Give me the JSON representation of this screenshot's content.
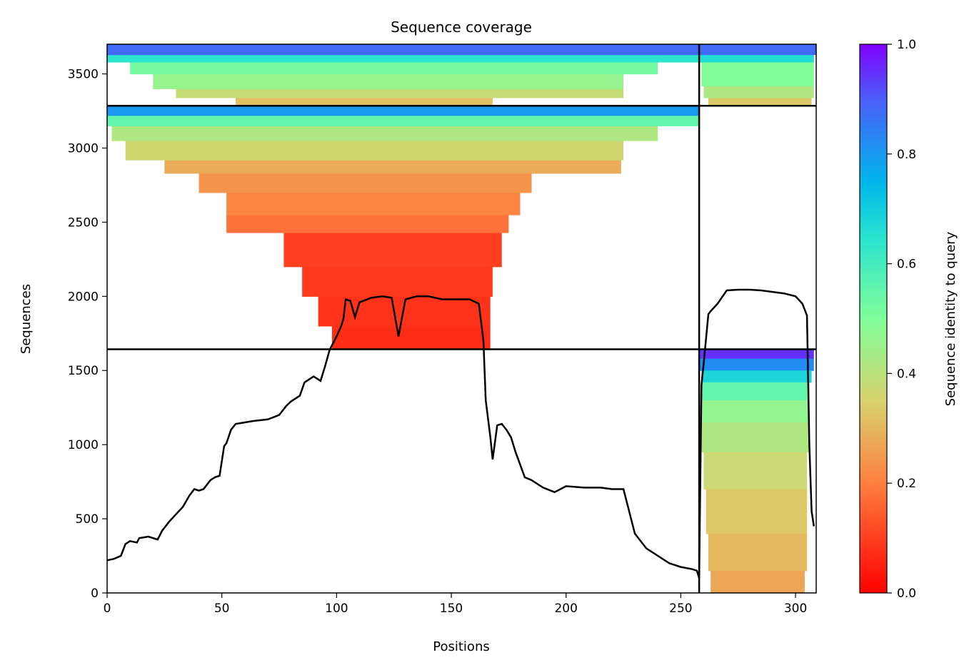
{
  "chart_data": {
    "type": "heatmap",
    "title": "Sequence coverage",
    "xlabel": "Positions",
    "ylabel": "Sequences",
    "xlim": [
      0,
      309
    ],
    "ylim": [
      0,
      3700
    ],
    "xticks": [
      0,
      50,
      100,
      150,
      200,
      250,
      300
    ],
    "yticks": [
      0,
      500,
      1000,
      1500,
      2000,
      2500,
      3000,
      3500
    ],
    "grid": false,
    "colorbar": {
      "label": "Sequence identity to query",
      "range": [
        0,
        1
      ],
      "ticks": [
        "0.0",
        "0.2",
        "0.4",
        "0.6",
        "0.8",
        "1.0"
      ],
      "colormap": "rainbow"
    },
    "separators": {
      "horizontal": [
        1643,
        3285
      ],
      "vertical": [
        258
      ]
    },
    "blocks": [
      {
        "name": "bottom-right",
        "y_range": [
          0,
          1643
        ],
        "rows": [
          {
            "y0": 1580,
            "y1": 1643,
            "x0": 258,
            "x1": 308,
            "identity": 0.95
          },
          {
            "y0": 1500,
            "y1": 1580,
            "x0": 258,
            "x1": 308,
            "identity": 0.82
          },
          {
            "y0": 1420,
            "y1": 1500,
            "x0": 259,
            "x1": 307,
            "identity": 0.68
          },
          {
            "y0": 1300,
            "y1": 1420,
            "x0": 259,
            "x1": 306,
            "identity": 0.55
          },
          {
            "y0": 1150,
            "y1": 1300,
            "x0": 259,
            "x1": 306,
            "identity": 0.47
          },
          {
            "y0": 950,
            "y1": 1150,
            "x0": 259,
            "x1": 306,
            "identity": 0.42
          },
          {
            "y0": 700,
            "y1": 950,
            "x0": 260,
            "x1": 305,
            "identity": 0.37
          },
          {
            "y0": 400,
            "y1": 700,
            "x0": 261,
            "x1": 305,
            "identity": 0.33
          },
          {
            "y0": 150,
            "y1": 400,
            "x0": 262,
            "x1": 305,
            "identity": 0.3
          },
          {
            "y0": 0,
            "y1": 150,
            "x0": 263,
            "x1": 304,
            "identity": 0.27
          }
        ]
      },
      {
        "name": "middle-left",
        "y_range": [
          1643,
          3285
        ],
        "rows": [
          {
            "y0": 1643,
            "y1": 1800,
            "x0": 98,
            "x1": 167,
            "identity": 0.07
          },
          {
            "y0": 1800,
            "y1": 2000,
            "x0": 92,
            "x1": 167,
            "identity": 0.08
          },
          {
            "y0": 2000,
            "y1": 2200,
            "x0": 85,
            "x1": 168,
            "identity": 0.09
          },
          {
            "y0": 2200,
            "y1": 2430,
            "x0": 77,
            "x1": 172,
            "identity": 0.1
          },
          {
            "y0": 2430,
            "y1": 2550,
            "x0": 52,
            "x1": 175,
            "identity": 0.18
          },
          {
            "y0": 2550,
            "y1": 2700,
            "x0": 52,
            "x1": 180,
            "identity": 0.21
          },
          {
            "y0": 2700,
            "y1": 2830,
            "x0": 40,
            "x1": 185,
            "identity": 0.24
          },
          {
            "y0": 2830,
            "y1": 2920,
            "x0": 25,
            "x1": 224,
            "identity": 0.28
          },
          {
            "y0": 2920,
            "y1": 3050,
            "x0": 8,
            "x1": 225,
            "identity": 0.36
          },
          {
            "y0": 3050,
            "y1": 3150,
            "x0": 2,
            "x1": 240,
            "identity": 0.42
          },
          {
            "y0": 3150,
            "y1": 3220,
            "x0": 0,
            "x1": 258,
            "identity": 0.55
          },
          {
            "y0": 3220,
            "y1": 3285,
            "x0": 0,
            "x1": 258,
            "identity": 0.8
          }
        ]
      },
      {
        "name": "top-left",
        "y_range": [
          3285,
          3700
        ],
        "rows": [
          {
            "y0": 3285,
            "y1": 3340,
            "x0": 56,
            "x1": 168,
            "identity": 0.32
          },
          {
            "y0": 3340,
            "y1": 3400,
            "x0": 30,
            "x1": 225,
            "identity": 0.38
          },
          {
            "y0": 3400,
            "y1": 3500,
            "x0": 20,
            "x1": 225,
            "identity": 0.46
          },
          {
            "y0": 3500,
            "y1": 3580,
            "x0": 10,
            "x1": 240,
            "identity": 0.52
          },
          {
            "y0": 3580,
            "y1": 3630,
            "x0": 0,
            "x1": 258,
            "identity": 0.64
          },
          {
            "y0": 3630,
            "y1": 3700,
            "x0": 0,
            "x1": 258,
            "identity": 0.88
          }
        ]
      },
      {
        "name": "top-right",
        "y_range": [
          3285,
          3700
        ],
        "rows": [
          {
            "y0": 3285,
            "y1": 3340,
            "x0": 262,
            "x1": 307,
            "identity": 0.33
          },
          {
            "y0": 3340,
            "y1": 3420,
            "x0": 260,
            "x1": 308,
            "identity": 0.42
          },
          {
            "y0": 3420,
            "y1": 3580,
            "x0": 259,
            "x1": 308,
            "identity": 0.5
          },
          {
            "y0": 3580,
            "y1": 3630,
            "x0": 258,
            "x1": 308,
            "identity": 0.66
          },
          {
            "y0": 3630,
            "y1": 3700,
            "x0": 258,
            "x1": 309,
            "identity": 0.88
          }
        ]
      }
    ],
    "coverage_line": {
      "x": [
        0,
        3,
        6,
        8,
        10,
        13,
        14,
        16,
        18,
        22,
        24,
        27,
        30,
        33,
        36,
        38,
        40,
        42,
        45,
        47,
        49,
        51,
        52,
        54,
        56,
        60,
        64,
        70,
        75,
        78,
        80,
        84,
        86,
        88,
        90,
        93,
        95,
        97,
        100,
        102,
        103,
        104,
        106,
        108,
        110,
        115,
        120,
        124,
        127,
        130,
        135,
        140,
        146,
        152,
        158,
        162,
        164,
        165,
        167,
        168,
        170,
        172,
        174,
        176,
        178,
        182,
        185,
        190,
        195,
        200,
        208,
        215,
        220,
        224,
        225,
        230,
        235,
        240,
        245,
        250,
        255,
        257,
        258,
        259,
        260,
        262,
        263,
        266,
        270,
        275,
        280,
        285,
        290,
        295,
        300,
        303,
        305,
        306,
        307,
        308
      ],
      "y": [
        220,
        230,
        250,
        330,
        350,
        340,
        370,
        375,
        380,
        360,
        420,
        480,
        530,
        580,
        660,
        700,
        690,
        700,
        760,
        780,
        790,
        990,
        1010,
        1100,
        1140,
        1150,
        1160,
        1170,
        1200,
        1260,
        1290,
        1330,
        1420,
        1440,
        1460,
        1430,
        1530,
        1640,
        1730,
        1800,
        1850,
        1980,
        1970,
        1860,
        1960,
        1990,
        2000,
        1990,
        1730,
        1980,
        2000,
        2000,
        1980,
        1980,
        1980,
        1950,
        1700,
        1300,
        1050,
        900,
        1130,
        1140,
        1100,
        1050,
        950,
        780,
        760,
        710,
        680,
        720,
        710,
        710,
        700,
        700,
        700,
        400,
        300,
        250,
        200,
        175,
        160,
        150,
        100,
        1400,
        1550,
        1880,
        1900,
        1950,
        2040,
        2045,
        2045,
        2040,
        2030,
        2020,
        2000,
        1950,
        1870,
        1000,
        550,
        450
      ]
    }
  }
}
